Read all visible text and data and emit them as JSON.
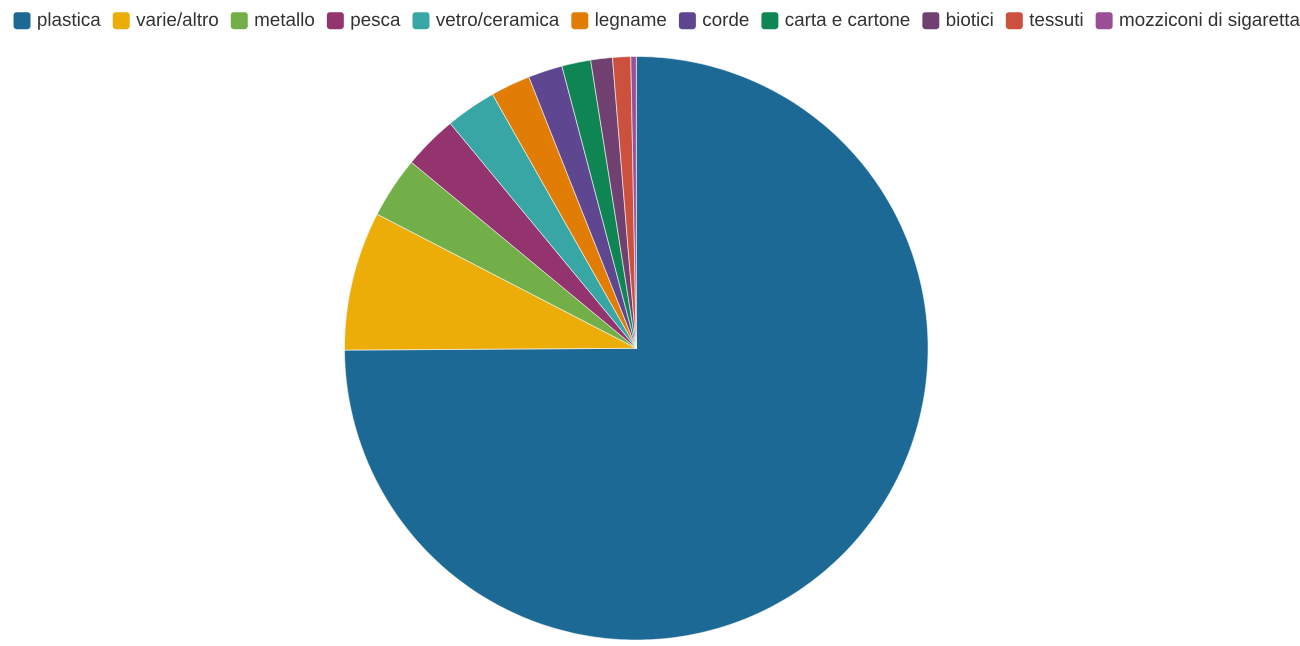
{
  "chart_data": {
    "type": "pie",
    "categories": [
      "plastica",
      "varie/altro",
      "metallo",
      "pesca",
      "vetro/ceramica",
      "legname",
      "corde",
      "carta e cartone",
      "biotici",
      "tessuti",
      "mozziconi di sigaretta"
    ],
    "values": [
      74.9,
      7.7,
      3.4,
      3.0,
      2.8,
      2.2,
      1.9,
      1.6,
      1.2,
      1.0,
      0.3
    ],
    "colors": [
      "#1d6996",
      "#edad08",
      "#73af48",
      "#94346e",
      "#38a6a5",
      "#e17c05",
      "#5f4690",
      "#0f8554",
      "#6f4070",
      "#cc503e",
      "#994e95"
    ],
    "legend": "top"
  }
}
